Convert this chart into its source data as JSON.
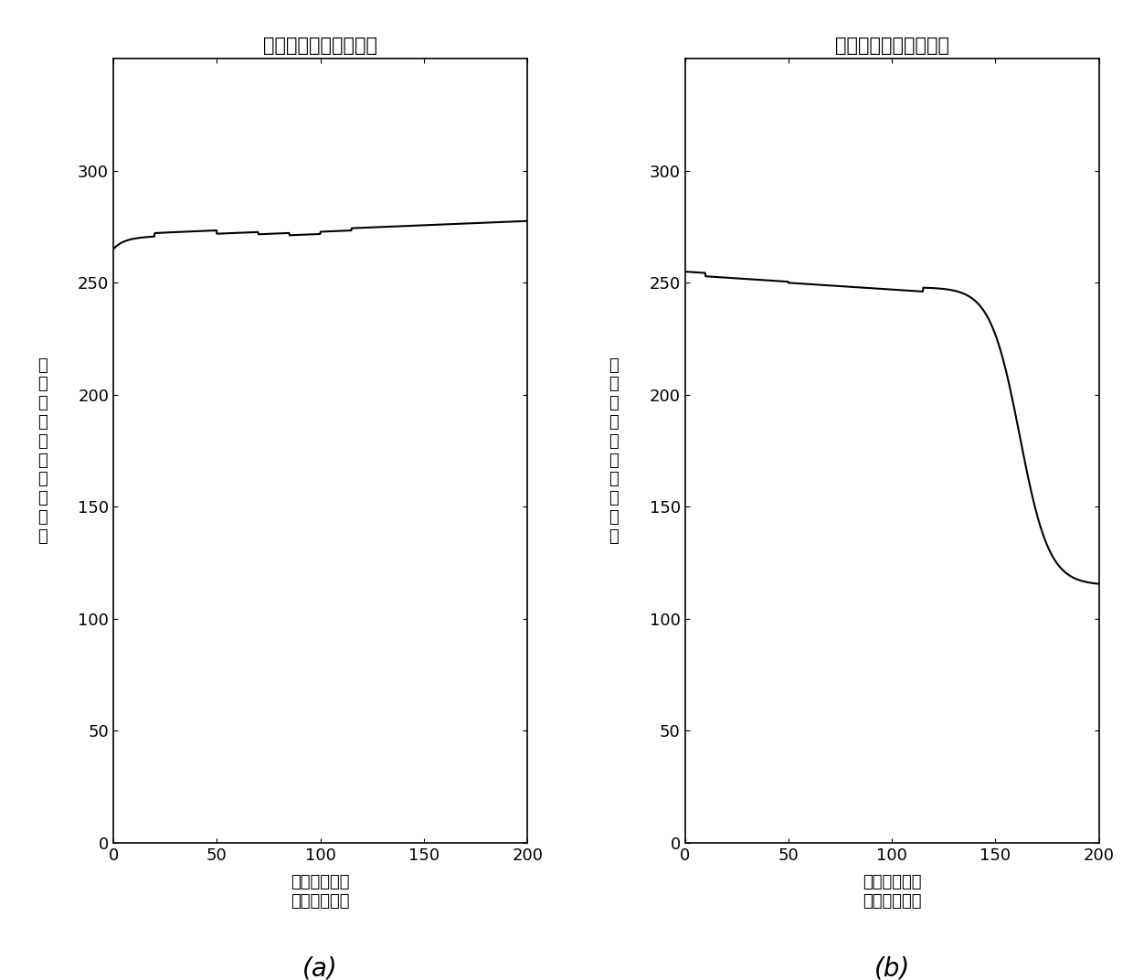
{
  "title_left": "火山通道顶面高程函数",
  "title_right": "火山通道底面高程函数",
  "xlabel": "用像素点数表\n示的横向距离",
  "ylabel_chars": [
    "用",
    "像",
    "素",
    "点",
    "数",
    "表",
    "示",
    "的",
    "高",
    "程"
  ],
  "xlim": [
    0,
    200
  ],
  "ylim": [
    0,
    350
  ],
  "xticks": [
    0,
    50,
    100,
    150,
    200
  ],
  "yticks": [
    0,
    50,
    100,
    150,
    200,
    250,
    300
  ],
  "label_a": "(a)",
  "label_b": "(b)",
  "line_color": "#000000",
  "bg_color": "#ffffff",
  "title_fontsize": 15,
  "tick_fontsize": 13,
  "label_fontsize": 13,
  "sublabel_fontsize": 20
}
